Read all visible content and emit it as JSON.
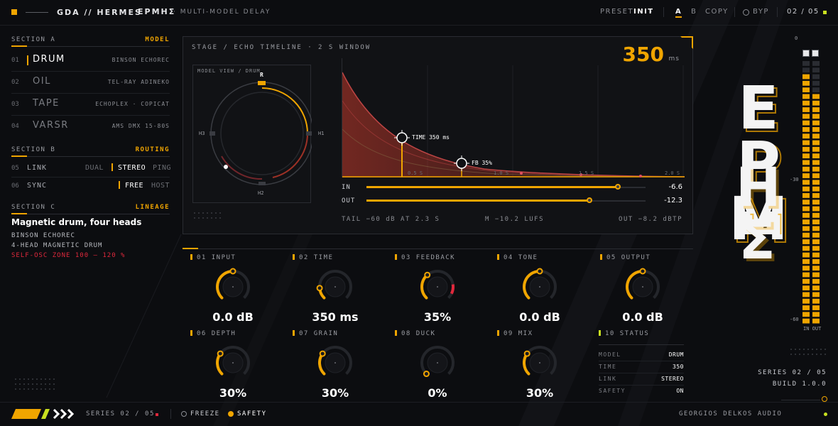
{
  "header": {
    "brand": "GDA // HERMES",
    "greek": "ΕΡΜΗΣ",
    "subtitle": "· MULTI-MODEL DELAY",
    "preset_label": "PRESET",
    "preset_value": "INIT",
    "ab_a": "A",
    "ab_b": "B",
    "copy": "COPY",
    "bypass": "BYP",
    "page": "02 / 05"
  },
  "section_a": {
    "title": "SECTION A",
    "tag": "MODEL",
    "models": [
      {
        "num": "01",
        "name": "DRUM",
        "source": "BINSON ECHOREC",
        "active": true
      },
      {
        "num": "02",
        "name": "OIL",
        "source": "TEL-RAY ADINEKO",
        "active": false
      },
      {
        "num": "03",
        "name": "TAPE",
        "source": "ECHOPLEX · COPICAT",
        "active": false
      },
      {
        "num": "04",
        "name": "VARSR",
        "source": "AMS DMX 15-80S",
        "active": false
      }
    ]
  },
  "section_b": {
    "title": "SECTION B",
    "tag": "ROUTING",
    "link": {
      "num": "05",
      "name": "LINK",
      "opt1": "DUAL",
      "opt2": "STEREO",
      "opt3": "PING",
      "selected": "STEREO"
    },
    "sync": {
      "num": "06",
      "name": "SYNC",
      "opt1": "FREE",
      "opt2": "HOST",
      "selected": "FREE"
    }
  },
  "section_c": {
    "title": "SECTION C",
    "tag": "LINEAGE",
    "headline": "Magnetic drum, four heads",
    "line1": "BINSON ECHOREC",
    "line2": "4-HEAD MAGNETIC DRUM",
    "warning": "SELF-OSC ZONE 100 – 120 %"
  },
  "stage": {
    "title": "STAGE / ECHO TIMELINE · 2 S WINDOW",
    "time_value": "350",
    "time_unit": "ms",
    "model_view_title": "MODEL VIEW / DRUM",
    "heads": {
      "r": "R",
      "h1": "H1",
      "h2": "H2",
      "h3": "H3"
    },
    "marker_time": "TIME 350 ms",
    "marker_fb": "FB 35%",
    "axis_ticks": [
      "0.5 S",
      "1.0 S",
      "1.5 S",
      "2.0 S"
    ],
    "in_label": "IN",
    "in_value": "-6.6",
    "in_level": 0.9,
    "out_label": "OUT",
    "out_value": "-12.3",
    "out_level": 0.8,
    "tail": "TAIL −60 dB AT 2.3 S",
    "lufs": "M −10.2 LUFS",
    "dbtp": "OUT −8.2 dBTP"
  },
  "knobs": [
    {
      "label": "01 INPUT",
      "value": "0.0 dB",
      "level": 0.5
    },
    {
      "label": "02 TIME",
      "value": "350 ms",
      "level": 0.15
    },
    {
      "label": "03 FEEDBACK",
      "value": "35%",
      "level": 0.35
    },
    {
      "label": "04 TONE",
      "value": "0.0 dB",
      "level": 0.5
    },
    {
      "label": "05 OUTPUT",
      "value": "0.0 dB",
      "level": 0.5
    },
    {
      "label": "06 DEPTH",
      "value": "30%",
      "level": 0.3
    },
    {
      "label": "07 GRAIN",
      "value": "30%",
      "level": 0.3
    },
    {
      "label": "08 DUCK",
      "value": "0%",
      "level": 0.0
    },
    {
      "label": "09 MIX",
      "value": "30%",
      "level": 0.3
    }
  ],
  "status": {
    "label": "10 STATUS",
    "rows": [
      {
        "k": "MODEL",
        "v": "DRUM"
      },
      {
        "k": "TIME",
        "v": "350"
      },
      {
        "k": "LINK",
        "v": "STEREO"
      },
      {
        "k": "SAFETY",
        "v": "ON"
      }
    ]
  },
  "meter": {
    "top": "0",
    "mid": "-30",
    "bottom": "-60",
    "in_out": "IN OUT",
    "series": "SERIES 02 / 05",
    "build": "BUILD 1.0.0"
  },
  "footer": {
    "series": "SERIES 02 / 05",
    "freeze": "FREEZE",
    "safety": "SAFETY",
    "credit": "GEORGIOS DELKOS AUDIO"
  },
  "colors": {
    "accent": "#f0a500",
    "warn": "#e0283c"
  }
}
